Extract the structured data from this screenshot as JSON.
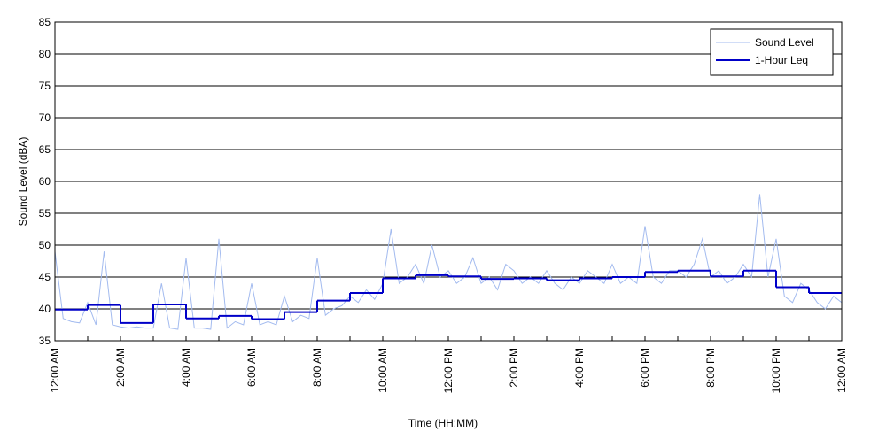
{
  "chart_data": {
    "type": "line",
    "xlabel": "Time (HH:MM)",
    "ylabel": "Sound Level (dBA)",
    "xlim": [
      0,
      24
    ],
    "ylim": [
      35,
      85
    ],
    "xticks": [
      {
        "value": 0,
        "label": "12:00 AM"
      },
      {
        "value": 2,
        "label": "2:00 AM"
      },
      {
        "value": 4,
        "label": "4:00 AM"
      },
      {
        "value": 6,
        "label": "6:00 AM"
      },
      {
        "value": 8,
        "label": "8:00 AM"
      },
      {
        "value": 10,
        "label": "10:00 AM"
      },
      {
        "value": 12,
        "label": "12:00 PM"
      },
      {
        "value": 14,
        "label": "2:00 PM"
      },
      {
        "value": 16,
        "label": "4:00 PM"
      },
      {
        "value": 18,
        "label": "6:00 PM"
      },
      {
        "value": 20,
        "label": "8:00 PM"
      },
      {
        "value": 22,
        "label": "10:00 PM"
      },
      {
        "value": 24,
        "label": "12:00 AM"
      }
    ],
    "xminorticks": [
      1,
      3,
      5,
      7,
      9,
      11,
      13,
      15,
      17,
      19,
      21,
      23
    ],
    "yticks": [
      35,
      40,
      45,
      50,
      55,
      60,
      65,
      70,
      75,
      80,
      85
    ],
    "grid": true,
    "legend": "upper right",
    "series": [
      {
        "name": "Sound Level",
        "color": "#a3bbef",
        "drawstyle": "default",
        "x": [
          0,
          0.25,
          0.5,
          0.75,
          1,
          1.25,
          1.5,
          1.75,
          2,
          2.25,
          2.5,
          2.75,
          3,
          3.25,
          3.5,
          3.75,
          4,
          4.25,
          4.5,
          4.75,
          5,
          5.25,
          5.5,
          5.75,
          6,
          6.25,
          6.5,
          6.75,
          7,
          7.25,
          7.5,
          7.75,
          8,
          8.25,
          8.5,
          8.75,
          9,
          9.25,
          9.5,
          9.75,
          10,
          10.25,
          10.5,
          10.75,
          11,
          11.25,
          11.5,
          11.75,
          12,
          12.25,
          12.5,
          12.75,
          13,
          13.25,
          13.5,
          13.75,
          14,
          14.25,
          14.5,
          14.75,
          15,
          15.25,
          15.5,
          15.75,
          16,
          16.25,
          16.5,
          16.75,
          17,
          17.25,
          17.5,
          17.75,
          18,
          18.25,
          18.5,
          18.75,
          19,
          19.25,
          19.5,
          19.75,
          20,
          20.25,
          20.5,
          20.75,
          21,
          21.25,
          21.5,
          21.75,
          22,
          22.25,
          22.5,
          22.75,
          23,
          23.25,
          23.5,
          23.75,
          24
        ],
        "values": [
          49,
          38.5,
          38,
          37.8,
          41,
          37.5,
          49,
          37.5,
          37.2,
          37,
          37.2,
          37,
          37,
          44,
          37,
          36.8,
          48,
          37,
          37,
          36.8,
          51,
          37,
          38,
          37.5,
          44,
          37.5,
          38,
          37.5,
          42,
          38,
          39,
          38.5,
          48,
          39,
          40,
          40.5,
          42,
          41,
          43,
          41.5,
          44,
          52.5,
          44,
          45,
          47,
          44,
          50,
          45,
          46,
          44,
          45,
          48,
          44,
          45,
          43,
          47,
          46,
          44,
          45,
          44,
          46,
          44,
          43,
          45,
          44,
          46,
          45,
          44,
          47,
          44,
          45,
          44,
          53,
          45,
          44,
          46,
          46,
          45,
          47,
          51,
          45,
          46,
          44,
          45,
          47,
          45,
          58,
          45,
          51,
          42,
          41,
          44,
          43,
          41,
          40,
          42,
          41
        ]
      },
      {
        "name": "1-Hour Leq",
        "color": "#0000c8",
        "drawstyle": "steps-post",
        "x": [
          0,
          1,
          2,
          3,
          4,
          5,
          6,
          7,
          8,
          9,
          10,
          11,
          12,
          13,
          14,
          15,
          16,
          17,
          18,
          19,
          20,
          21,
          22,
          23
        ],
        "values": [
          39.9,
          40.6,
          37.8,
          40.7,
          38.5,
          38.9,
          38.4,
          39.5,
          41.3,
          42.5,
          44.8,
          45.3,
          45.1,
          44.7,
          44.8,
          44.5,
          44.8,
          45.0,
          45.8,
          46.0,
          45.1,
          46.0,
          43.4,
          42.5
        ]
      }
    ]
  }
}
